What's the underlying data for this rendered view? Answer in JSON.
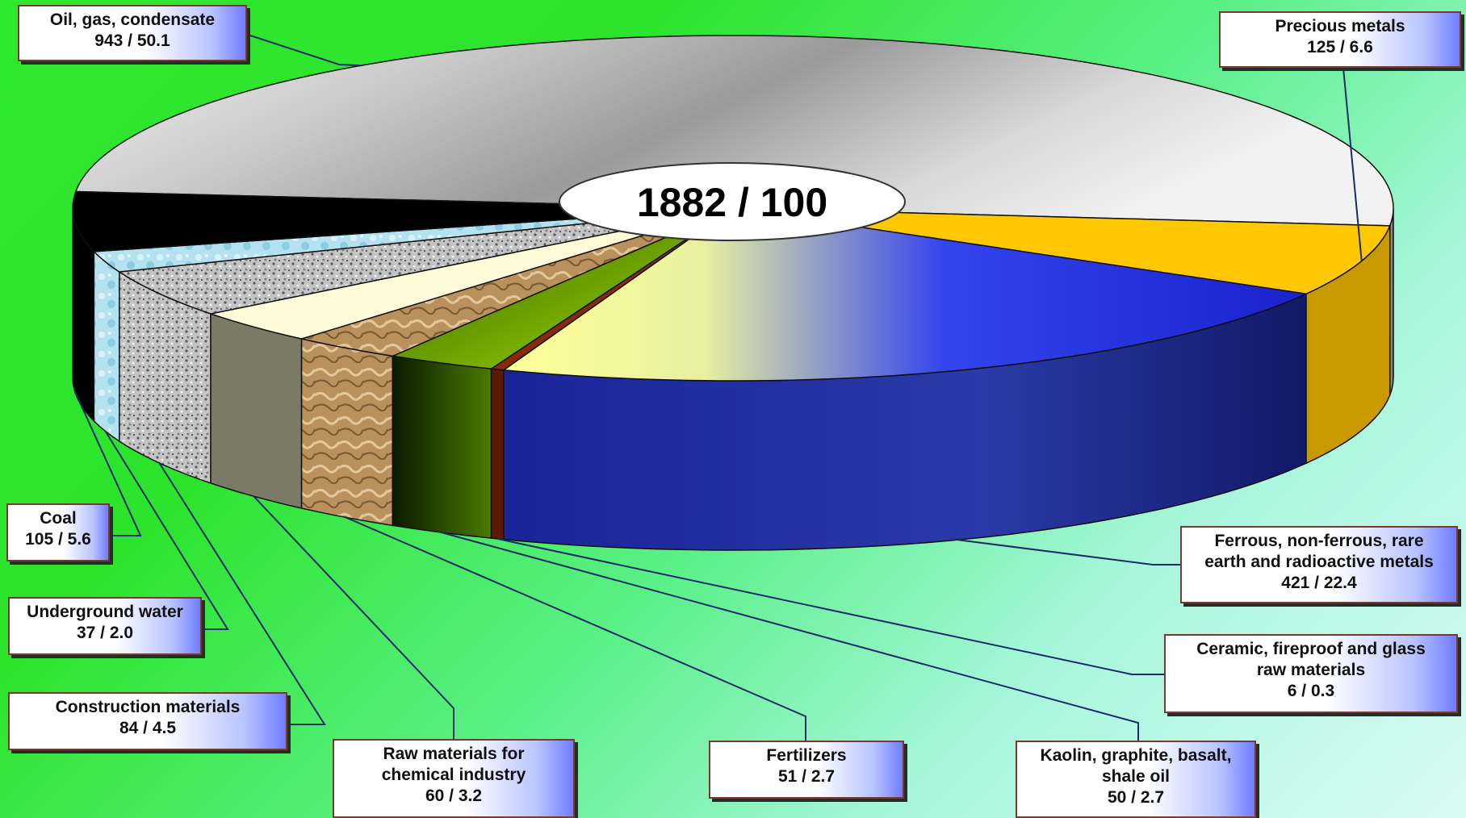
{
  "chart_data": {
    "type": "pie",
    "title": "",
    "total": "1882 / 100",
    "slices": [
      {
        "name": "Oil, gas, condensate",
        "value": 943,
        "percent": 50.1,
        "label": "943 / 50.1",
        "color": "#e8e8e8"
      },
      {
        "name": "Precious metals",
        "value": 125,
        "percent": 6.6,
        "label": "125 / 6.6",
        "color": "#ffc800"
      },
      {
        "name": "Ferrous, non-ferrous, rare earth and radioactive metals",
        "value": 421,
        "percent": 22.4,
        "label": "421 / 22.4",
        "color": "#2233dd"
      },
      {
        "name": "Ceramic, fireproof and glass raw materials",
        "value": 6,
        "percent": 0.3,
        "label": "6 / 0.3",
        "color": "#8b2a0a"
      },
      {
        "name": "Kaolin, graphite, basalt, shale oil",
        "value": 50,
        "percent": 2.7,
        "label": "50 / 2.7",
        "color": "#7cc400"
      },
      {
        "name": "Fertilizers",
        "value": 51,
        "percent": 2.7,
        "label": "51 / 2.7",
        "color": "#b8905c"
      },
      {
        "name": "Raw materials for chemical industry",
        "value": 60,
        "percent": 3.2,
        "label": "60 / 3.2",
        "color": "#fffbd8"
      },
      {
        "name": "Construction materials",
        "value": 84,
        "percent": 4.5,
        "label": "84 / 4.5",
        "color": "#9a9a9a"
      },
      {
        "name": "Underground water",
        "value": 37,
        "percent": 2.0,
        "label": "37 / 2.0",
        "color": "#b8e6f2"
      },
      {
        "name": "Coal",
        "value": 105,
        "percent": 5.6,
        "label": "105 / 5.6",
        "color": "#000000"
      }
    ]
  },
  "labels": {
    "oil": {
      "line1": "Oil, gas, condensate",
      "line2": "943 / 50.1"
    },
    "precious": {
      "line1": "Precious metals",
      "line2": "125 / 6.6"
    },
    "ferrous": {
      "line1": "Ferrous, non-ferrous, rare",
      "line2": "earth and radioactive metals",
      "line3": "421 / 22.4"
    },
    "ceramic": {
      "line1": "Ceramic, fireproof and glass",
      "line2": "raw materials",
      "line3": "6 / 0.3"
    },
    "kaolin": {
      "line1": "Kaolin, graphite, basalt,",
      "line2": "shale oil",
      "line3": "50 / 2.7"
    },
    "fertilizers": {
      "line1": "Fertilizers",
      "line2": "51 / 2.7"
    },
    "chemical": {
      "line1": "Raw materials for",
      "line2": "chemical industry",
      "line3": "60 / 3.2"
    },
    "construction": {
      "line1": "Construction materials",
      "line2": "84 / 4.5"
    },
    "water": {
      "line1": "Underground water",
      "line2": "37 / 2.0"
    },
    "coal": {
      "line1": "Coal",
      "line2": "105 / 5.6"
    }
  }
}
